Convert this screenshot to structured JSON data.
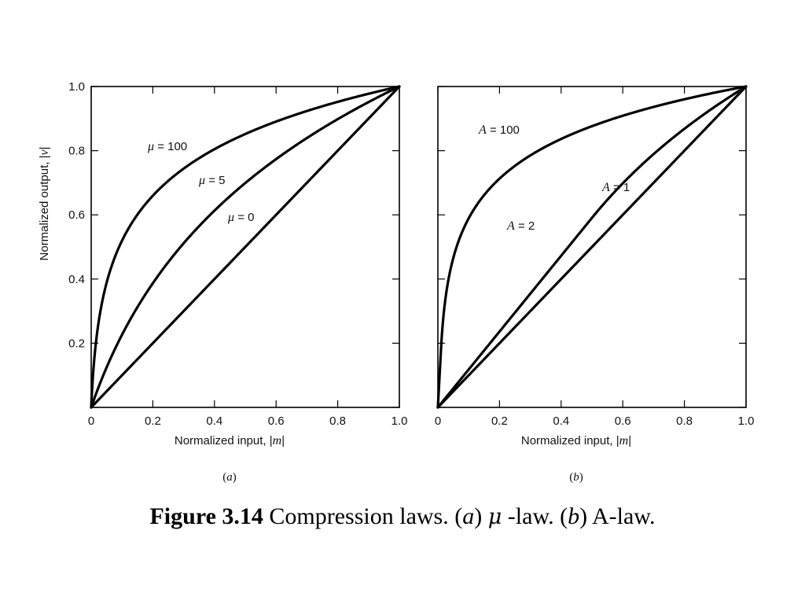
{
  "chart_data": [
    {
      "type": "line",
      "panel_label": "a",
      "xlabel_prefix": "Normalized input, |",
      "xlabel_var": "m",
      "xlabel_suffix": "|",
      "ylabel_prefix": "Normalized output, |",
      "ylabel_var": "v",
      "ylabel_suffix": "|",
      "xlim": [
        0,
        1.0
      ],
      "ylim": [
        0,
        1.0
      ],
      "x_ticks": [
        "0",
        "0.2",
        "0.4",
        "0.6",
        "0.8",
        "1.0"
      ],
      "y_ticks": [
        "",
        "0.2",
        "0.4",
        "0.6",
        "0.8",
        "1.0"
      ],
      "series": [
        {
          "symbol": "μ",
          "value_text": " = 100",
          "law": "mu",
          "param": 100
        },
        {
          "symbol": "μ",
          "value_text": " = 5",
          "law": "mu",
          "param": 5
        },
        {
          "symbol": "μ",
          "value_text": " = 0",
          "law": "mu",
          "param": 0
        }
      ]
    },
    {
      "type": "line",
      "panel_label": "b",
      "xlabel_prefix": "Normalized input, |",
      "xlabel_var": "m",
      "xlabel_suffix": "|",
      "xlim": [
        0,
        1.0
      ],
      "ylim": [
        0,
        1.0
      ],
      "x_ticks": [
        "0",
        "0.2",
        "0.4",
        "0.6",
        "0.8",
        "1.0"
      ],
      "series": [
        {
          "symbol": "A",
          "value_text": " = 100",
          "law": "A",
          "param": 100
        },
        {
          "symbol": "A",
          "value_text": " = 2",
          "law": "A",
          "param": 2
        },
        {
          "symbol": "A",
          "value_text": " = 1",
          "law": "A",
          "param": 1
        }
      ]
    }
  ],
  "caption": {
    "figure_number": "Figure 3.14",
    "text_1": " Compression laws. (",
    "a": "a",
    "text_2": ") ",
    "mu": "μ",
    "text_3": " -law. (",
    "b": "b",
    "text_4": ") A-law."
  }
}
